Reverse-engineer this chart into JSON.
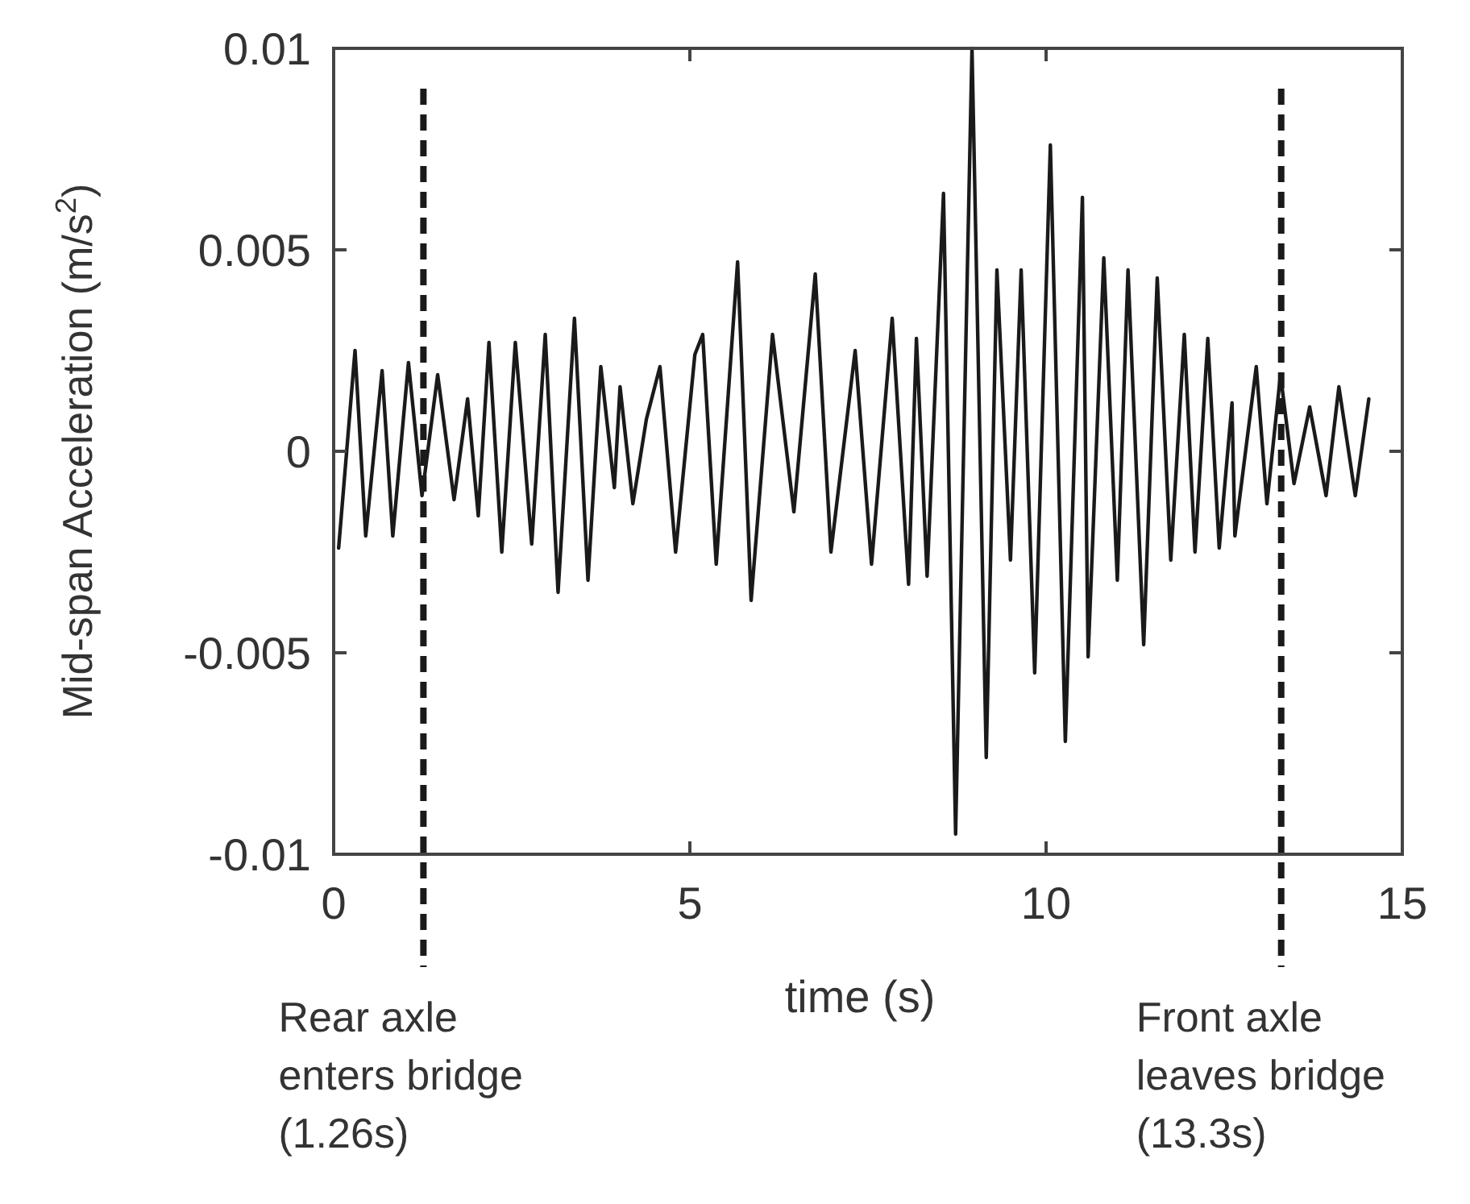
{
  "chart_data": {
    "type": "line",
    "ylabel": "Mid-span Acceleration (m/s$^{2}$)",
    "xlabel": "time (s)",
    "xlim": [
      0,
      15
    ],
    "xticks": [
      0,
      5,
      10,
      15
    ],
    "ylim": [
      -0.01,
      0.01
    ],
    "yticks": [
      -0.01,
      -0.005,
      0,
      0.005,
      0.01
    ],
    "grid": false,
    "marker": "none",
    "line_style": "solid",
    "series": [
      {
        "color": "#1a1a1a",
        "x": [
          0.07,
          0.3,
          0.45,
          0.68,
          0.83,
          1.05,
          1.24,
          1.46,
          1.69,
          1.88,
          2.03,
          2.18,
          2.36,
          2.55,
          2.78,
          2.97,
          3.15,
          3.38,
          3.57,
          3.75,
          3.94,
          4.02,
          4.2,
          4.39,
          4.58,
          4.8,
          5.07,
          5.18,
          5.37,
          5.67,
          5.86,
          6.16,
          6.46,
          6.76,
          6.98,
          7.32,
          7.55,
          7.84,
          8.07,
          8.18,
          8.33,
          8.56,
          8.73,
          8.96,
          9.16,
          9.31,
          9.5,
          9.65,
          9.84,
          10.06,
          10.27,
          10.51,
          10.59,
          10.81,
          11.0,
          11.15,
          11.37,
          11.56,
          11.75,
          11.94,
          12.09,
          12.27,
          12.43,
          12.61,
          12.65,
          12.95,
          13.1,
          13.29,
          13.48,
          13.7,
          13.93,
          14.11,
          14.34,
          14.53
        ],
        "values": [
          -0.0024,
          0.0025,
          -0.0021,
          0.002,
          -0.0021,
          0.0022,
          -0.0011,
          0.0019,
          -0.0012,
          0.0013,
          -0.0016,
          0.0027,
          -0.0025,
          0.0027,
          -0.0023,
          0.0029,
          -0.0035,
          0.0033,
          -0.0032,
          0.0021,
          -0.0009,
          0.0016,
          -0.0013,
          0.0008,
          0.0021,
          -0.0025,
          0.0024,
          0.0029,
          -0.0028,
          0.0047,
          -0.0037,
          0.0029,
          -0.0015,
          0.0044,
          -0.0025,
          0.0025,
          -0.0028,
          0.0033,
          -0.0033,
          0.0028,
          -0.0031,
          0.0064,
          -0.0095,
          0.01,
          -0.0076,
          0.0045,
          -0.0027,
          0.0045,
          -0.0055,
          0.0076,
          -0.0072,
          0.0063,
          -0.0051,
          0.0048,
          -0.0032,
          0.0045,
          -0.0048,
          0.0043,
          -0.0027,
          0.0029,
          -0.0025,
          0.0028,
          -0.0024,
          0.0012,
          -0.0021,
          0.0021,
          -0.0013,
          0.0019,
          -0.0008,
          0.0011,
          -0.0011,
          0.0016,
          -0.0011,
          0.0013
        ]
      }
    ],
    "ref_lines": [
      {
        "axis": "x",
        "value": 1.26,
        "label": "Rear axle\nenters bridge\n(1.26s)",
        "line_style": "dashed",
        "color": "#1a1a1a"
      },
      {
        "axis": "x",
        "value": 13.3,
        "label": "Front axle\nleaves bridge\n(13.3s)",
        "line_style": "dashed",
        "color": "#1a1a1a"
      }
    ]
  }
}
